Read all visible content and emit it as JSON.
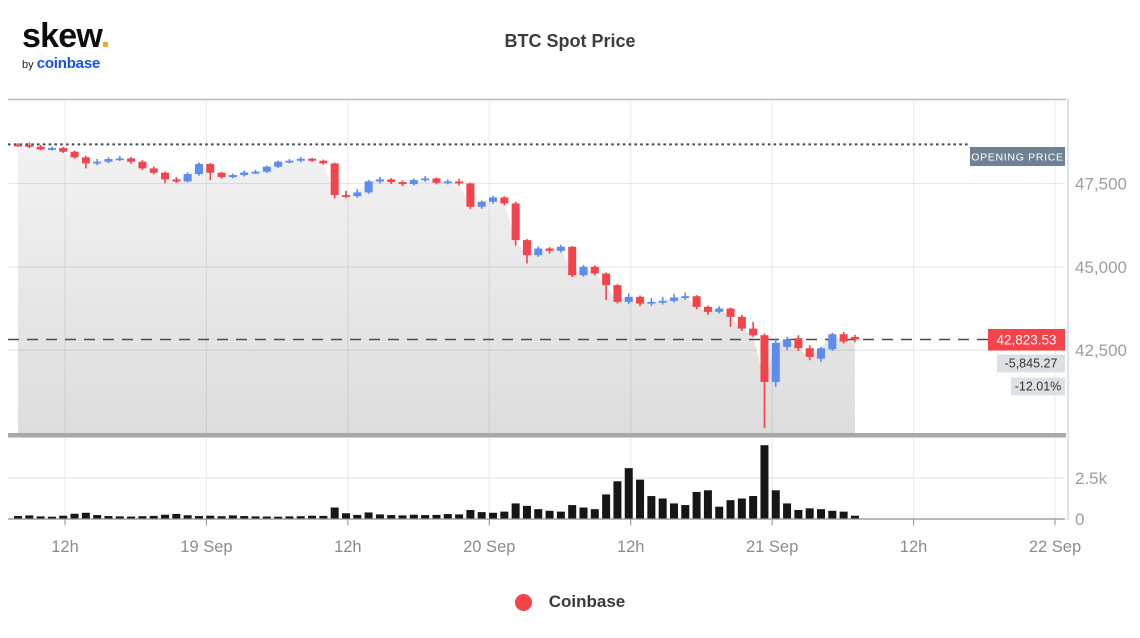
{
  "header": {
    "logo": {
      "brand": "skew",
      "dot": ".",
      "by": "by",
      "partner": "coinbase"
    },
    "title": "BTC Spot Price"
  },
  "colors": {
    "up_candle": "#5b8cee",
    "down_candle": "#f4434b",
    "volume_bar": "#161616",
    "opening_label_bg": "#6e8294",
    "last_price_bg": "#f4434b",
    "change_label_bg": "#dde1e5",
    "coinbase_blue": "#1652f0",
    "logo_dot_orange": "#f5a81c"
  },
  "chart_data": {
    "type": "candlestick",
    "title": "BTC Spot Price",
    "legend": [
      {
        "label": "Coinbase",
        "color": "#f4434b"
      }
    ],
    "x_ticks": [
      "12h",
      "19 Sep",
      "12h",
      "20 Sep",
      "12h",
      "21 Sep",
      "12h",
      "22 Sep"
    ],
    "price_ticks": [
      {
        "v": 47500,
        "label": "47,500"
      },
      {
        "v": 45000,
        "label": "45,000"
      },
      {
        "v": 42500,
        "label": "42,500"
      }
    ],
    "volume_ticks": [
      {
        "v": 2500,
        "label": "2.5k"
      },
      {
        "v": 0,
        "label": "0"
      }
    ],
    "price_axis_range": [
      39900,
      50000
    ],
    "volume_axis_max": 4600,
    "grid": true,
    "legend_position": "bottom",
    "opening_price_line": {
      "label": "OPENING PRICE",
      "value": 48668.8
    },
    "last_price": {
      "label": "42,823.53",
      "value": 42823.53,
      "change": "-5,845.27",
      "change_pct": "-12.01%"
    },
    "candles_format": [
      "open",
      "high",
      "low",
      "close",
      "volume"
    ],
    "candles": [
      [
        48660,
        48705,
        48615,
        48650,
        180
      ],
      [
        48650,
        48730,
        48555,
        48600,
        220
      ],
      [
        48600,
        48650,
        48490,
        48520,
        160
      ],
      [
        48520,
        48600,
        48485,
        48560,
        140
      ],
      [
        48560,
        48595,
        48415,
        48450,
        200
      ],
      [
        48450,
        48485,
        48245,
        48280,
        320
      ],
      [
        48280,
        48330,
        47950,
        48100,
        380
      ],
      [
        48100,
        48235,
        48045,
        48150,
        240
      ],
      [
        48150,
        48285,
        48105,
        48230,
        180
      ],
      [
        48230,
        48320,
        48175,
        48250,
        160
      ],
      [
        48250,
        48290,
        48090,
        48150,
        150
      ],
      [
        48150,
        48195,
        47905,
        47950,
        170
      ],
      [
        47950,
        48010,
        47770,
        47820,
        190
      ],
      [
        47820,
        47855,
        47505,
        47620,
        260
      ],
      [
        47620,
        47690,
        47510,
        47560,
        310
      ],
      [
        47560,
        47835,
        47530,
        47780,
        230
      ],
      [
        47780,
        48130,
        47730,
        48080,
        180
      ],
      [
        48080,
        48110,
        47605,
        47820,
        200
      ],
      [
        47820,
        47850,
        47640,
        47690,
        170
      ],
      [
        47690,
        47800,
        47650,
        47750,
        220
      ],
      [
        47750,
        47885,
        47705,
        47830,
        180
      ],
      [
        47830,
        47905,
        47780,
        47850,
        160
      ],
      [
        47850,
        48035,
        47810,
        48000,
        150
      ],
      [
        48000,
        48185,
        47960,
        48150,
        140
      ],
      [
        48150,
        48230,
        48100,
        48180,
        160
      ],
      [
        48180,
        48290,
        48130,
        48240,
        170
      ],
      [
        48240,
        48265,
        48140,
        48180,
        200
      ],
      [
        48180,
        48215,
        48060,
        48100,
        190
      ],
      [
        48100,
        48120,
        47050,
        47150,
        700
      ],
      [
        47150,
        47280,
        47060,
        47120,
        350
      ],
      [
        47120,
        47330,
        47070,
        47230,
        250
      ],
      [
        47230,
        47600,
        47190,
        47560,
        400
      ],
      [
        47560,
        47700,
        47500,
        47620,
        280
      ],
      [
        47620,
        47660,
        47480,
        47540,
        240
      ],
      [
        47540,
        47590,
        47420,
        47480,
        220
      ],
      [
        47480,
        47650,
        47440,
        47600,
        260
      ],
      [
        47600,
        47720,
        47550,
        47650,
        240
      ],
      [
        47650,
        47680,
        47470,
        47520,
        250
      ],
      [
        47520,
        47620,
        47470,
        47560,
        300
      ],
      [
        47560,
        47640,
        47440,
        47500,
        280
      ],
      [
        47500,
        47525,
        46730,
        46800,
        550
      ],
      [
        46800,
        46990,
        46740,
        46950,
        420
      ],
      [
        46950,
        47130,
        46890,
        47080,
        380
      ],
      [
        47080,
        47110,
        46840,
        46900,
        450
      ],
      [
        46900,
        46950,
        45640,
        45800,
        950
      ],
      [
        45800,
        45830,
        45100,
        45350,
        800
      ],
      [
        45350,
        45610,
        45300,
        45550,
        600
      ],
      [
        45550,
        45590,
        45400,
        45480,
        500
      ],
      [
        45480,
        45660,
        45430,
        45600,
        450
      ],
      [
        45600,
        45620,
        44690,
        44750,
        850
      ],
      [
        44750,
        45060,
        44700,
        45000,
        700
      ],
      [
        45000,
        45040,
        44740,
        44800,
        600
      ],
      [
        44800,
        44830,
        44000,
        44450,
        1500
      ],
      [
        44450,
        44480,
        43900,
        43950,
        2300
      ],
      [
        43950,
        44200,
        43880,
        44100,
        3100
      ],
      [
        44100,
        44140,
        43820,
        43900,
        2400
      ],
      [
        43900,
        44060,
        43830,
        43950,
        1400
      ],
      [
        43950,
        44100,
        43870,
        43980,
        1250
      ],
      [
        43980,
        44190,
        43930,
        44080,
        950
      ],
      [
        44080,
        44230,
        44010,
        44120,
        850
      ],
      [
        44120,
        44150,
        43730,
        43800,
        1650
      ],
      [
        43800,
        43840,
        43560,
        43650,
        1750
      ],
      [
        43650,
        43820,
        43600,
        43750,
        750
      ],
      [
        43750,
        43780,
        43200,
        43500,
        1150
      ],
      [
        43500,
        43560,
        43080,
        43150,
        1250
      ],
      [
        43150,
        43350,
        42900,
        42950,
        1400
      ],
      [
        42950,
        43000,
        40170,
        41550,
        4500
      ],
      [
        41550,
        42860,
        41400,
        42720,
        1750
      ],
      [
        42600,
        42900,
        42500,
        42830,
        950
      ],
      [
        42860,
        42950,
        42480,
        42560,
        550
      ],
      [
        42560,
        42650,
        42200,
        42300,
        650
      ],
      [
        42250,
        42600,
        42150,
        42560,
        600
      ],
      [
        42530,
        43020,
        42480,
        42980,
        500
      ],
      [
        42980,
        43050,
        42700,
        42760,
        450
      ],
      [
        42900,
        42960,
        42740,
        42823.53,
        200
      ]
    ]
  }
}
